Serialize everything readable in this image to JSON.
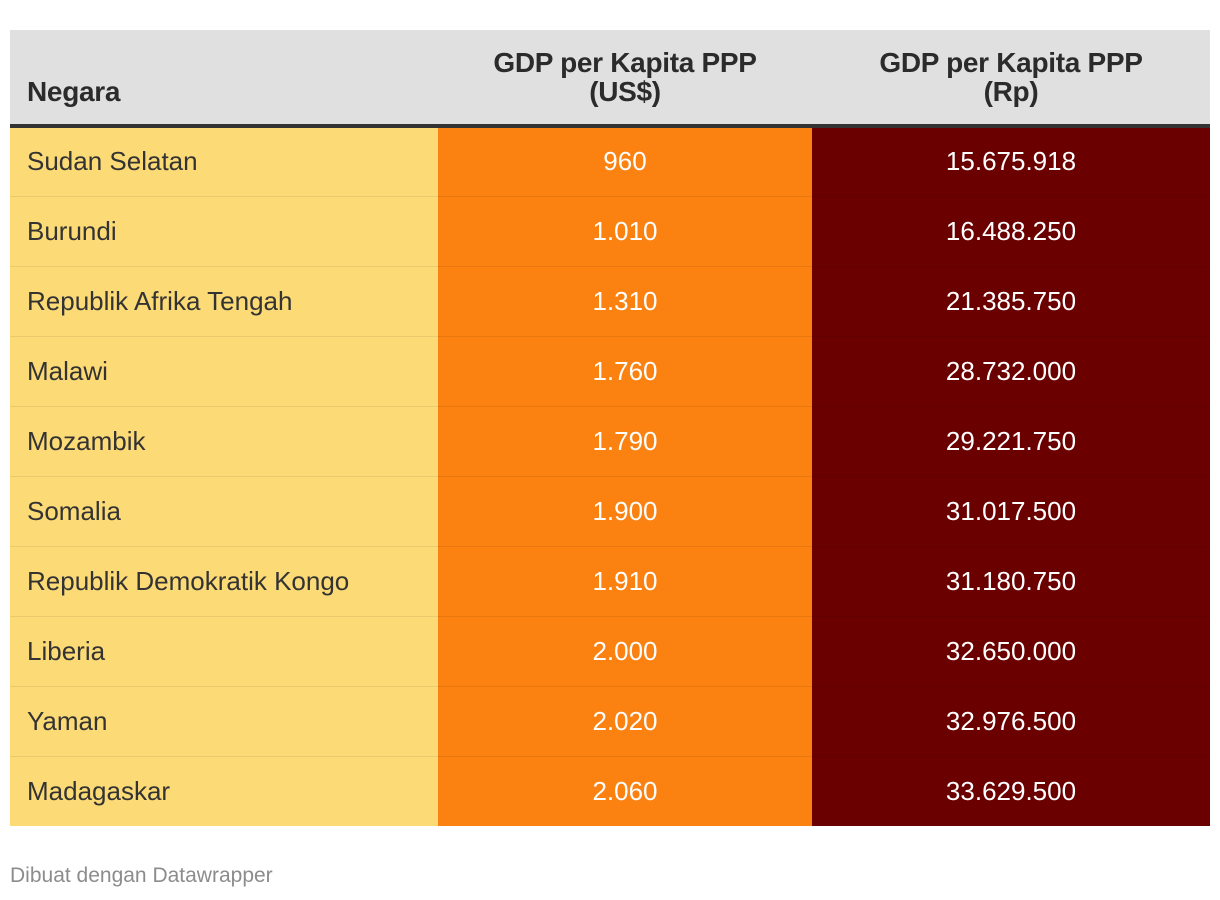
{
  "table": {
    "columns": [
      {
        "label": "Negara"
      },
      {
        "label_line1": "GDP per Kapita PPP",
        "label_line2": "(US$)"
      },
      {
        "label_line1": "GDP per Kapita PPP",
        "label_line2": "(Rp)"
      }
    ],
    "rows": [
      {
        "country": "Sudan Selatan",
        "usd": "960",
        "rp": "15.675.918"
      },
      {
        "country": "Burundi",
        "usd": "1.010",
        "rp": "16.488.250"
      },
      {
        "country": "Republik Afrika Tengah",
        "usd": "1.310",
        "rp": "21.385.750"
      },
      {
        "country": "Malawi",
        "usd": "1.760",
        "rp": "28.732.000"
      },
      {
        "country": "Mozambik",
        "usd": "1.790",
        "rp": "29.221.750"
      },
      {
        "country": "Somalia",
        "usd": "1.900",
        "rp": "31.017.500"
      },
      {
        "country": "Republik Demokratik Kongo",
        "usd": "1.910",
        "rp": "31.180.750"
      },
      {
        "country": "Liberia",
        "usd": "2.000",
        "rp": "32.650.000"
      },
      {
        "country": "Yaman",
        "usd": "2.020",
        "rp": "32.976.500"
      },
      {
        "country": "Madagaskar",
        "usd": "2.060",
        "rp": "33.629.500"
      }
    ],
    "colors": {
      "header_bg": "#e0e0e0",
      "country_bg": "#fcda76",
      "usd_bg": "#fb8111",
      "rp_bg": "#6b0000"
    }
  },
  "chart_data": {
    "type": "table",
    "columns": [
      "Negara",
      "GDP per Kapita PPP (US$)",
      "GDP per Kapita PPP (Rp)"
    ],
    "rows": [
      [
        "Sudan Selatan",
        960,
        15675918
      ],
      [
        "Burundi",
        1010,
        16488250
      ],
      [
        "Republik Afrika Tengah",
        1310,
        21385750
      ],
      [
        "Malawi",
        1760,
        28732000
      ],
      [
        "Mozambik",
        1790,
        29221750
      ],
      [
        "Somalia",
        1900,
        31017500
      ],
      [
        "Republik Demokratik Kongo",
        1910,
        31180750
      ],
      [
        "Liberia",
        2000,
        32650000
      ],
      [
        "Yaman",
        2020,
        32976500
      ],
      [
        "Madagaskar",
        2060,
        33629500
      ]
    ]
  },
  "footer": {
    "credit": "Dibuat dengan Datawrapper"
  }
}
